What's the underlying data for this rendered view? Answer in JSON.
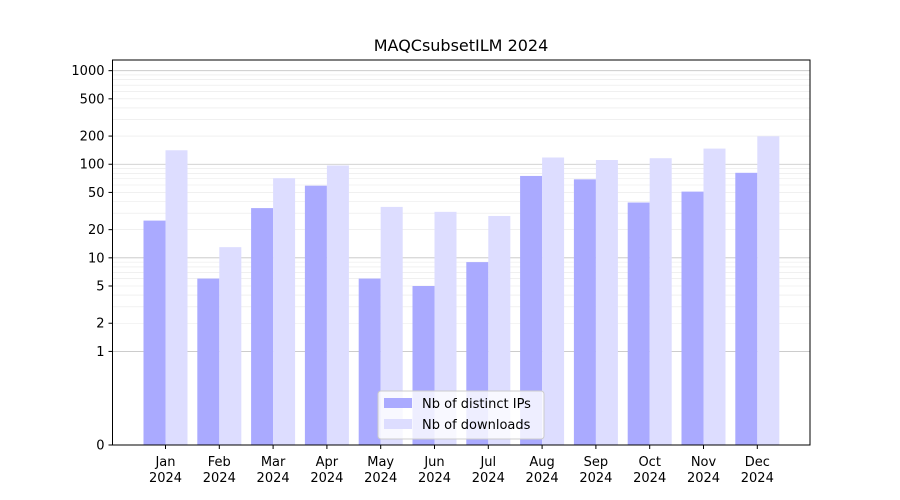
{
  "chart_data": {
    "type": "bar",
    "title": "MAQCsubsetILM 2024",
    "xlabel": "",
    "ylabel": "",
    "yscale": "symlog",
    "ylim": [
      0,
      1300
    ],
    "yticks": [
      0,
      1,
      2,
      5,
      10,
      20,
      50,
      100,
      200,
      500,
      1000
    ],
    "grid": true,
    "legend_position": "bottom-center",
    "categories": [
      {
        "month": "Jan",
        "year": "2024"
      },
      {
        "month": "Feb",
        "year": "2024"
      },
      {
        "month": "Mar",
        "year": "2024"
      },
      {
        "month": "Apr",
        "year": "2024"
      },
      {
        "month": "May",
        "year": "2024"
      },
      {
        "month": "Jun",
        "year": "2024"
      },
      {
        "month": "Jul",
        "year": "2024"
      },
      {
        "month": "Aug",
        "year": "2024"
      },
      {
        "month": "Sep",
        "year": "2024"
      },
      {
        "month": "Oct",
        "year": "2024"
      },
      {
        "month": "Nov",
        "year": "2024"
      },
      {
        "month": "Dec",
        "year": "2024"
      }
    ],
    "series": [
      {
        "name": "Nb of distinct IPs",
        "color": "#aaaaff",
        "values": [
          25,
          6,
          34,
          59,
          6,
          5,
          9,
          75,
          69,
          39,
          51,
          81
        ]
      },
      {
        "name": "Nb of downloads",
        "color": "#ddddff",
        "values": [
          141,
          13,
          71,
          97,
          35,
          31,
          28,
          118,
          111,
          116,
          147,
          199
        ]
      }
    ]
  }
}
